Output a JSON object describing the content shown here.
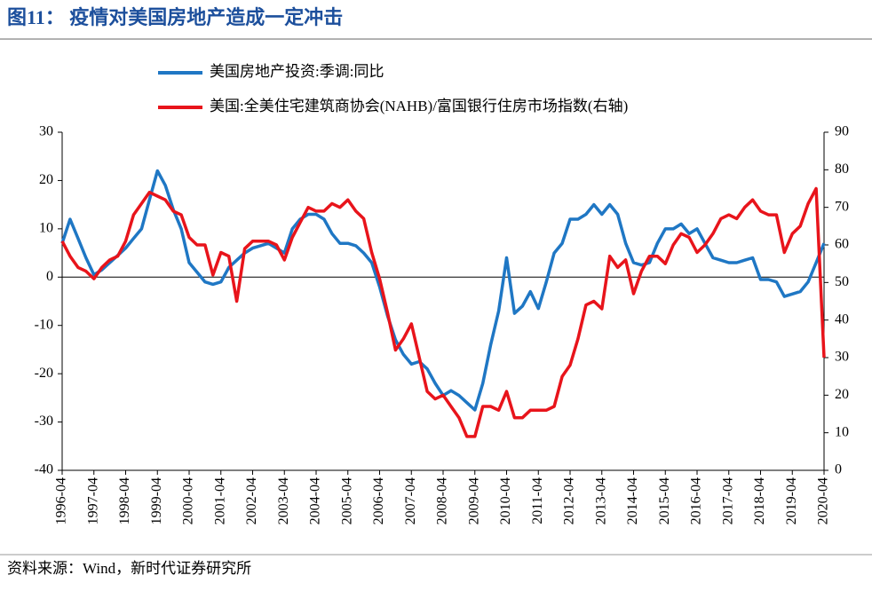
{
  "title": "图11：  疫情对美国房地产造成一定冲击",
  "source": "资料来源：Wind，新时代证券研究所",
  "chart_data": {
    "type": "line",
    "x": [
      "1996-04",
      "1996-07",
      "1996-10",
      "1997-01",
      "1997-04",
      "1997-07",
      "1997-10",
      "1998-01",
      "1998-04",
      "1998-07",
      "1998-10",
      "1999-01",
      "1999-04",
      "1999-07",
      "1999-10",
      "2000-01",
      "2000-04",
      "2000-07",
      "2000-10",
      "2001-01",
      "2001-04",
      "2001-07",
      "2001-10",
      "2002-01",
      "2002-04",
      "2002-07",
      "2002-10",
      "2003-01",
      "2003-04",
      "2003-07",
      "2003-10",
      "2004-01",
      "2004-04",
      "2004-07",
      "2004-10",
      "2005-01",
      "2005-04",
      "2005-07",
      "2005-10",
      "2006-01",
      "2006-04",
      "2006-07",
      "2006-10",
      "2007-01",
      "2007-04",
      "2007-07",
      "2007-10",
      "2008-01",
      "2008-04",
      "2008-07",
      "2008-10",
      "2009-01",
      "2009-04",
      "2009-07",
      "2009-10",
      "2010-01",
      "2010-04",
      "2010-07",
      "2010-10",
      "2011-01",
      "2011-04",
      "2011-07",
      "2011-10",
      "2012-01",
      "2012-04",
      "2012-07",
      "2012-10",
      "2013-01",
      "2013-04",
      "2013-07",
      "2013-10",
      "2014-01",
      "2014-04",
      "2014-07",
      "2014-10",
      "2015-01",
      "2015-04",
      "2015-07",
      "2015-10",
      "2016-01",
      "2016-04",
      "2016-07",
      "2016-10",
      "2017-01",
      "2017-04",
      "2017-07",
      "2017-10",
      "2018-01",
      "2018-04",
      "2018-07",
      "2018-10",
      "2019-01",
      "2019-04",
      "2019-07",
      "2019-10",
      "2020-01",
      "2020-04"
    ],
    "series": [
      {
        "name": "美国房地产投资:季调:同比",
        "color": "#1f77c4",
        "values": [
          7,
          12,
          8,
          4,
          0.5,
          1.5,
          3,
          4.5,
          6,
          8,
          10,
          16,
          22,
          19,
          14,
          10,
          3,
          1,
          -1,
          -1.5,
          -1,
          2,
          3.5,
          5,
          6,
          6.5,
          7,
          6,
          5,
          10,
          12,
          13,
          13,
          12,
          9,
          7,
          7,
          6.5,
          5,
          3,
          -2,
          -8,
          -13,
          -16,
          -18,
          -17.5,
          -19,
          -22,
          -24.5,
          -23.5,
          -24.5,
          -26,
          -27.5,
          -22,
          -14,
          -7,
          4,
          -7.5,
          -6,
          -3,
          -6.5,
          -1,
          5,
          7,
          12,
          12,
          13,
          15,
          13,
          15,
          13,
          7,
          3,
          2.5,
          3,
          7,
          10,
          10,
          11,
          9,
          10,
          7,
          4,
          3.5,
          3,
          3,
          3.5,
          4,
          -0.5,
          -0.5,
          -1,
          -4,
          -3.5,
          -3,
          -1,
          3,
          7
        ]
      },
      {
        "name": "美国:全美住宅建筑商协会(NAHB)/富国银行住房市场指数(右轴)",
        "color": "#e8141b",
        "axis": "y2",
        "values": [
          61,
          57,
          54,
          53,
          51,
          54,
          56,
          57,
          61,
          68,
          71,
          74,
          73,
          72,
          69,
          68,
          62,
          60,
          60,
          52,
          58,
          57,
          45,
          59,
          61,
          61,
          61,
          60,
          56,
          62,
          66,
          70,
          69,
          69,
          71,
          70,
          72,
          69,
          67,
          58,
          51,
          42,
          32,
          35,
          39,
          30,
          21,
          19,
          20,
          17,
          14,
          9,
          9,
          17,
          17,
          16,
          21,
          14,
          14,
          16,
          16,
          16,
          17,
          25,
          28,
          35,
          44,
          45,
          43,
          57,
          54,
          56,
          47,
          53,
          57,
          57,
          55,
          60,
          63,
          62,
          58,
          60,
          63,
          67,
          68,
          67,
          70,
          72,
          69,
          68,
          68,
          58,
          63,
          65,
          71,
          75,
          30
        ]
      }
    ],
    "ylim": [
      -40,
      30
    ],
    "yticks": [
      30,
      20,
      10,
      0,
      -10,
      -20,
      -30,
      -40
    ],
    "y2lim": [
      0,
      90
    ],
    "y2ticks": [
      90,
      80,
      70,
      60,
      50,
      40,
      30,
      20,
      10,
      0
    ]
  }
}
